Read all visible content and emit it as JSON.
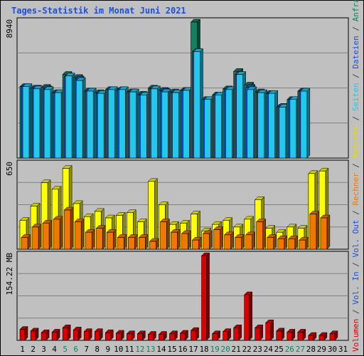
{
  "chart_data": {
    "type": "bar",
    "title": "Tages-Statistik im Monat Juni 2021",
    "categories": [
      "1",
      "2",
      "3",
      "4",
      "5",
      "6",
      "7",
      "8",
      "9",
      "10",
      "11",
      "12",
      "13",
      "14",
      "15",
      "16",
      "17",
      "18",
      "19",
      "20",
      "21",
      "22",
      "23",
      "24",
      "25",
      "26",
      "27",
      "28",
      "29",
      "30",
      "31"
    ],
    "weekend_days": [
      "5",
      "6",
      "12",
      "13",
      "19",
      "20",
      "26",
      "27"
    ],
    "right_axis_labels": [
      {
        "text": "Volumen",
        "color": "#dd0000"
      },
      {
        "text": " / ",
        "color": "#444444"
      },
      {
        "text": "Vol. In",
        "color": "#1d4fd8"
      },
      {
        "text": " / ",
        "color": "#444444"
      },
      {
        "text": "Vol. Out",
        "color": "#1d4fd8"
      },
      {
        "text": " / ",
        "color": "#444444"
      },
      {
        "text": "Rechner",
        "color": "#f07800"
      },
      {
        "text": " / ",
        "color": "#444444"
      },
      {
        "text": "Besuche",
        "color": "#e6d800"
      },
      {
        "text": " / ",
        "color": "#444444"
      },
      {
        "text": "Seiten",
        "color": "#22c8ee"
      },
      {
        "text": " / ",
        "color": "#444444"
      },
      {
        "text": "Dateien",
        "color": "#1d4fd8"
      },
      {
        "text": " / ",
        "color": "#444444"
      },
      {
        "text": "Anfragen",
        "color": "#128060"
      }
    ],
    "panels": [
      {
        "id": "requests",
        "max_label": "8940",
        "ylim": [
          0,
          8940
        ],
        "series": [
          {
            "name": "Anfragen",
            "color": "#128060",
            "values": [
              4700,
              4600,
              4650,
              4300,
              5500,
              5300,
              4400,
              4300,
              4500,
              4450,
              4350,
              4200,
              4600,
              4450,
              4350,
              4450,
              8940,
              3850,
              4150,
              4550,
              5700,
              4800,
              4350,
              4250,
              3350,
              3850,
              4400,
              null,
              null,
              null,
              null
            ]
          },
          {
            "name": "Dateien",
            "color": "#1d4fd8",
            "values": [
              4700,
              4600,
              4550,
              4300,
              5350,
              5200,
              4400,
              4250,
              4500,
              4500,
              4350,
              4150,
              4550,
              4400,
              4300,
              4450,
              7000,
              3850,
              4150,
              4500,
              5500,
              4650,
              4300,
              4250,
              3400,
              3850,
              4400,
              null,
              null,
              null,
              null
            ]
          },
          {
            "name": "Seiten",
            "color": "#22c8ee",
            "values": [
              4700,
              4550,
              4500,
              4300,
              5400,
              5100,
              4400,
              4250,
              4500,
              4500,
              4350,
              4150,
              4550,
              4350,
              4300,
              4450,
              7000,
              3850,
              4150,
              4500,
              5500,
              4500,
              4300,
              4250,
              3350,
              3850,
              4400,
              null,
              null,
              null,
              null
            ]
          }
        ]
      },
      {
        "id": "visits",
        "max_label": "650",
        "ylim": [
          0,
          650
        ],
        "series": [
          {
            "name": "Besuche",
            "color": "#ffff00",
            "values": [
              220,
              330,
              510,
              460,
              620,
              350,
              250,
              290,
              240,
              260,
              280,
              210,
              520,
              340,
              190,
              200,
              270,
              140,
              190,
              220,
              170,
              230,
              380,
              160,
              130,
              170,
              160,
              580,
              600,
              null,
              null
            ]
          },
          {
            "name": "Rechner",
            "color": "#f07800",
            "values": [
              90,
              170,
              200,
              230,
              300,
              210,
              130,
              160,
              130,
              90,
              90,
              90,
              60,
              210,
              130,
              120,
              70,
              120,
              150,
              110,
              90,
              110,
              210,
              90,
              80,
              80,
              70,
              270,
              240,
              null,
              null
            ]
          }
        ]
      },
      {
        "id": "volume",
        "max_label": "154.22 MB",
        "ylim": [
          0,
          154.22
        ],
        "series": [
          {
            "name": "Volumen",
            "color": "#dd0000",
            "values": [
              20,
              17,
              14,
              15,
              23,
              19,
              16,
              16,
              14,
              13,
              12,
              12,
              11,
              11,
              12,
              13,
              18,
              154,
              12,
              16,
              23,
              83,
              23,
              32,
              17,
              15,
              15,
              9,
              9,
              12,
              null
            ]
          }
        ]
      }
    ]
  }
}
